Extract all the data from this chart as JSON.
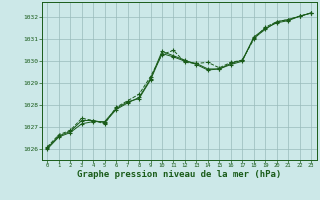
{
  "background_color": "#cce8e8",
  "grid_color": "#99bbbb",
  "line_color": "#1a5c1a",
  "xlabel": "Graphe pression niveau de la mer (hPa)",
  "xlabel_fontsize": 6.5,
  "xlim": [
    -0.5,
    23.5
  ],
  "ylim": [
    1025.5,
    1032.7
  ],
  "yticks": [
    1026,
    1027,
    1028,
    1029,
    1030,
    1031,
    1032
  ],
  "xticks": [
    0,
    1,
    2,
    3,
    4,
    5,
    6,
    7,
    8,
    9,
    10,
    11,
    12,
    13,
    14,
    15,
    16,
    17,
    18,
    19,
    20,
    21,
    22,
    23
  ],
  "series1": {
    "x": [
      0,
      1,
      2,
      3,
      4,
      5,
      6,
      7,
      8,
      9,
      10,
      11,
      12,
      13,
      14,
      15,
      16,
      17,
      18,
      19,
      20,
      21,
      22,
      23
    ],
    "y": [
      1026.05,
      1026.6,
      1026.8,
      1027.3,
      1027.3,
      1027.2,
      1027.8,
      1028.1,
      1028.35,
      1029.2,
      1030.45,
      1030.25,
      1030.05,
      1029.85,
      1029.6,
      1029.65,
      1029.9,
      1030.05,
      1031.05,
      1031.45,
      1031.8,
      1031.9,
      1032.05,
      1032.2
    ]
  },
  "series2": {
    "x": [
      0,
      1,
      2,
      3,
      4,
      5,
      6,
      7,
      8,
      9,
      10,
      11,
      12,
      13,
      14,
      15,
      16,
      17,
      18,
      19,
      20,
      21,
      22,
      23
    ],
    "y": [
      1026.0,
      1026.55,
      1026.75,
      1027.15,
      1027.25,
      1027.25,
      1027.85,
      1028.15,
      1028.3,
      1029.15,
      1030.35,
      1030.2,
      1030.0,
      1029.9,
      1029.65,
      1029.65,
      1029.85,
      1030.0,
      1031.1,
      1031.5,
      1031.75,
      1031.85,
      1032.05,
      1032.2
    ]
  },
  "series3": {
    "x": [
      0,
      1,
      2,
      3,
      4,
      5,
      6,
      7,
      8,
      9,
      10,
      11,
      12,
      13,
      14,
      15,
      16,
      17,
      18,
      19,
      20,
      21,
      22,
      23
    ],
    "y": [
      1026.1,
      1026.65,
      1026.85,
      1027.4,
      1027.3,
      1027.15,
      1027.9,
      1028.2,
      1028.5,
      1029.3,
      1030.3,
      1030.5,
      1029.95,
      1029.9,
      1029.95,
      1029.7,
      1029.95,
      1030.05,
      1031.0,
      1031.55,
      1031.8,
      1031.9,
      1032.05,
      1032.2
    ]
  }
}
